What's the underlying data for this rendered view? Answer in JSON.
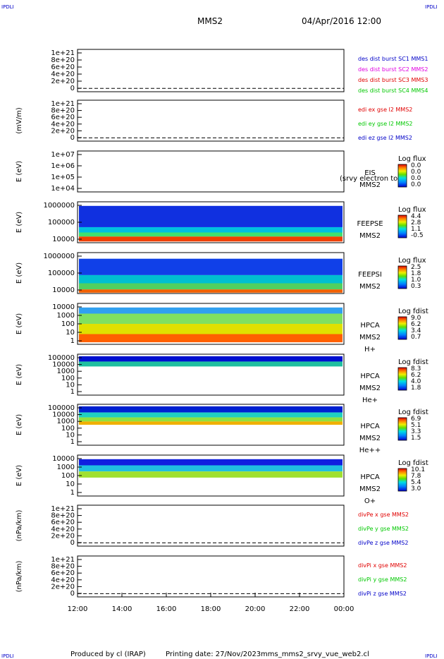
{
  "corner": {
    "tl": "IPDLI",
    "tr": "IPDLI",
    "bl": "IPDLI",
    "br": "IPDLI"
  },
  "header": {
    "spacecraft": "MMS2",
    "date": "04/Apr/2016 12:00"
  },
  "footer": {
    "produced": "Produced by cl (IRAP)",
    "printing": "Printing date: 27/Nov/2023",
    "file": "mms_mms2_srvy_vue_web2.cl"
  },
  "colors": {
    "red": "#e00000",
    "magenta": "#e000e0",
    "green": "#00c800",
    "blue": "#0000c8"
  },
  "chart_data": [
    {
      "type": "line",
      "ylabel": "",
      "yticks": [
        "1e+21",
        "8e+20",
        "6e+20",
        "4e+20",
        "2e+20",
        "0"
      ],
      "legend": [
        {
          "text": "des dist burst SC1 MMS1",
          "color": "#0000c8"
        },
        {
          "text": "des dist burst SC2 MMS2",
          "color": "#e000e0"
        },
        {
          "text": "des dist burst SC3 MMS3",
          "color": "#e00000"
        },
        {
          "text": "des dist burst SC4 MMS4",
          "color": "#00c800"
        }
      ]
    },
    {
      "type": "line",
      "ylabel": "(mV/m)",
      "yticks": [
        "1e+21",
        "8e+20",
        "6e+20",
        "4e+20",
        "2e+20",
        "0"
      ],
      "legend": [
        {
          "text": "edi ex gse l2 MMS2",
          "color": "#e00000"
        },
        {
          "text": "edi ey gse l2 MMS2",
          "color": "#00c800"
        },
        {
          "text": "edi ez gse l2 MMS2",
          "color": "#0000c8"
        }
      ]
    },
    {
      "type": "heatmap",
      "ylabel": "E (eV)",
      "yticks": [
        "1e+07",
        "1e+06",
        "1e+05",
        "1e+04"
      ],
      "labels": [
        "EIS",
        "MMS2"
      ],
      "overlay": "(srvy electron to",
      "cbar_title": "Log flux",
      "cbar_ticks": [
        "0.0",
        "0.0",
        "0.0",
        "0.0"
      ]
    },
    {
      "type": "heatmap",
      "ylabel": "E (eV)",
      "yticks": [
        "1000000",
        "100000",
        "10000"
      ],
      "labels": [
        "FEEPSE",
        "MMS2"
      ],
      "cbar_title": "Log flux",
      "cbar_ticks": [
        "4.4",
        "2.8",
        "1.1",
        "-0.5"
      ]
    },
    {
      "type": "heatmap",
      "ylabel": "E (eV)",
      "yticks": [
        "1000000",
        "100000",
        "10000"
      ],
      "labels": [
        "FEEPSI",
        "MMS2"
      ],
      "cbar_title": "Log flux",
      "cbar_ticks": [
        "2.5",
        "1.8",
        "1.0",
        "0.3"
      ]
    },
    {
      "type": "heatmap",
      "ylabel": "E (eV)",
      "yticks": [
        "10000",
        "1000",
        "100",
        "10",
        "1"
      ],
      "labels": [
        "HPCA",
        "MMS2",
        "H+"
      ],
      "cbar_title": "Log fdist",
      "cbar_ticks": [
        "9.0",
        "6.2",
        "3.4",
        "0.7"
      ]
    },
    {
      "type": "heatmap",
      "ylabel": "E (eV)",
      "yticks": [
        "100000",
        "10000",
        "1000",
        "100",
        "10",
        "1"
      ],
      "labels": [
        "HPCA",
        "MMS2",
        "He+"
      ],
      "cbar_title": "Log fdist",
      "cbar_ticks": [
        "8.3",
        "6.2",
        "4.0",
        "1.8"
      ]
    },
    {
      "type": "heatmap",
      "ylabel": "E (eV)",
      "yticks": [
        "100000",
        "10000",
        "1000",
        "100",
        "10",
        "1"
      ],
      "labels": [
        "HPCA",
        "MMS2",
        "He++"
      ],
      "cbar_title": "Log fdist",
      "cbar_ticks": [
        "6.9",
        "5.1",
        "3.3",
        "1.5"
      ]
    },
    {
      "type": "heatmap",
      "ylabel": "E (eV)",
      "yticks": [
        "10000",
        "1000",
        "100",
        "10",
        "1"
      ],
      "labels": [
        "HPCA",
        "MMS2",
        "O+"
      ],
      "cbar_title": "Log fdist",
      "cbar_ticks": [
        "10.1",
        "7.8",
        "5.4",
        "3.0"
      ]
    },
    {
      "type": "line",
      "ylabel": "(nPa/km)",
      "yticks": [
        "1e+21",
        "8e+20",
        "6e+20",
        "4e+20",
        "2e+20",
        "0"
      ],
      "legend": [
        {
          "text": "divPe x gse MMS2",
          "color": "#e00000"
        },
        {
          "text": "divPe y gse MMS2",
          "color": "#00c800"
        },
        {
          "text": "divPe z gse MMS2",
          "color": "#0000c8"
        }
      ]
    },
    {
      "type": "line",
      "ylabel": "(nPa/km)",
      "yticks": [
        "1e+21",
        "8e+20",
        "6e+20",
        "4e+20",
        "2e+20",
        "0"
      ],
      "legend": [
        {
          "text": "divPi x gse MMS2",
          "color": "#e00000"
        },
        {
          "text": "divPi y gse MMS2",
          "color": "#00c800"
        },
        {
          "text": "divPi z gse MMS2",
          "color": "#0000c8"
        }
      ]
    }
  ],
  "xaxis": {
    "ticks": [
      "12:00",
      "14:00",
      "16:00",
      "18:00",
      "20:00",
      "22:00",
      "00:00"
    ]
  }
}
